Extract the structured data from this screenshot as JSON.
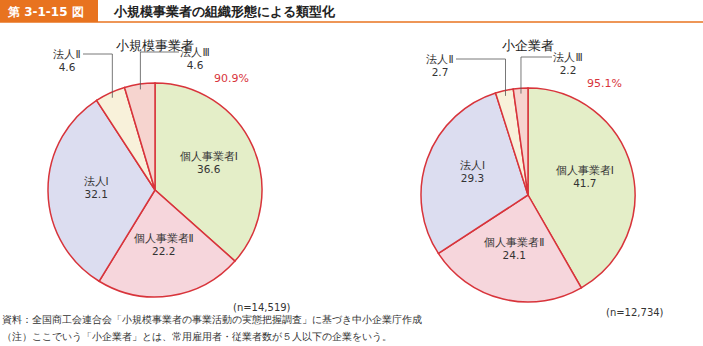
{
  "header": {
    "figure_number": "第 3-1-15 図",
    "title": "小規模事業者の組織形態による類型化"
  },
  "chart_data": [
    {
      "type": "pie",
      "title": "小規模事業者",
      "categories": [
        "個人事業者Ⅰ",
        "個人事業者Ⅱ",
        "法人Ⅰ",
        "法人Ⅱ",
        "法人Ⅲ"
      ],
      "values": [
        36.6,
        22.2,
        32.1,
        4.6,
        4.6
      ],
      "colors": [
        "#e4eec8",
        "#f6d6dc",
        "#dcddf0",
        "#f8f1da",
        "#f6d4cf"
      ],
      "data_labels": true,
      "annotation": "90.9%",
      "note": "(n=14,519)"
    },
    {
      "type": "pie",
      "title": "小企業者",
      "categories": [
        "個人事業者Ⅰ",
        "個人事業者Ⅱ",
        "法人Ⅰ",
        "法人Ⅱ",
        "法人Ⅲ"
      ],
      "values": [
        41.7,
        24.1,
        29.3,
        2.7,
        2.2
      ],
      "colors": [
        "#e4eec8",
        "#f6d6dc",
        "#dcddf0",
        "#f8f1da",
        "#f6d4cf"
      ],
      "data_labels": true,
      "annotation": "95.1%",
      "note": "(n=12,734)"
    }
  ],
  "footer": {
    "source": "資料：全国商工会連合会「小規模事業者の事業活動の実態把握調査」に基づき中小企業庁作成",
    "note": "（注）ここでいう「小企業者」とは、常用雇用者・従業者数が５人以下の企業をいう。"
  }
}
